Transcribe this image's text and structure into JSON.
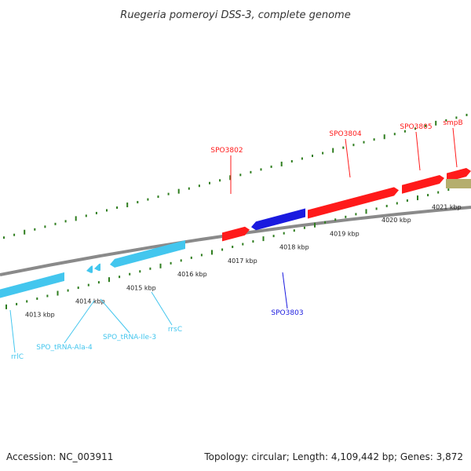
{
  "title": "Ruegeria pomeroyi DSS-3, complete genome",
  "footer": {
    "accession": "Accession: NC_003911",
    "summary": "Topology: circular; Length: 4,109,442 bp; Genes: 3,872"
  },
  "colors": {
    "backbone": "#8a8a8a",
    "tick": "#2e7d1e",
    "forward_gene": "#ff1a1a",
    "reverse_gene": "#1a1adf",
    "rrna": "#43c6ee",
    "trna": "#43c6ee",
    "other": "#b5ae6e"
  },
  "ticks": {
    "labels": [
      "4013 kbp",
      "4014 kbp",
      "4015 kbp",
      "4016 kbp",
      "4017 kbp",
      "4018 kbp",
      "4019 kbp",
      "4020 kbp",
      "4021 kbp"
    ]
  },
  "features": [
    {
      "name": "SPO3802",
      "type": "forward_gene"
    },
    {
      "name": "SPO3804",
      "type": "forward_gene"
    },
    {
      "name": "SPO3805",
      "type": "forward_gene"
    },
    {
      "name": "smpB",
      "type": "other"
    },
    {
      "name": "SPO3803",
      "type": "reverse_gene"
    },
    {
      "name": "rrlC",
      "type": "rrna"
    },
    {
      "name": "SPO_tRNA-Ala-4",
      "type": "trna"
    },
    {
      "name": "SPO_tRNA-Ile-3",
      "type": "trna"
    },
    {
      "name": "rrsC",
      "type": "rrna"
    }
  ]
}
